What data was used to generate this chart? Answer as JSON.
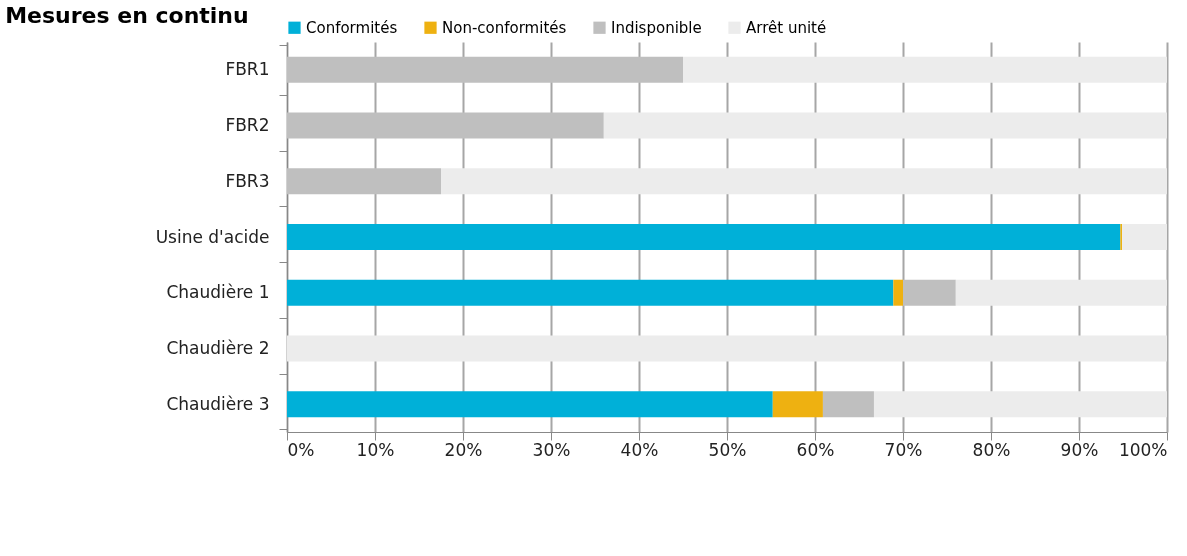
{
  "chart_data": {
    "type": "bar",
    "orientation": "horizontal",
    "stacked": true,
    "title": "Mesures en continu",
    "categories": [
      "FBR1",
      "FBR2",
      "FBR3",
      "Usine d'acide",
      "Chaudière 1",
      "Chaudière 2",
      "Chaudière 3"
    ],
    "series": [
      {
        "name": "Conformités",
        "color": "#00b0d8",
        "values": [
          0,
          0,
          0,
          94.7,
          68.9,
          0,
          55.2
        ]
      },
      {
        "name": "Non-conformités",
        "color": "#eeb111",
        "values": [
          0,
          0,
          0,
          0.2,
          1.1,
          0,
          5.7
        ]
      },
      {
        "name": "Indisponible",
        "color": "#bfbfbf",
        "values": [
          45,
          36,
          17.5,
          0,
          6.0,
          0,
          5.8
        ]
      },
      {
        "name": "Arrêt unité",
        "color": "#ececec",
        "values": [
          55,
          64,
          82.5,
          5.1,
          24.0,
          100,
          33.3
        ]
      }
    ],
    "xlim": [
      0,
      100
    ],
    "xticks": [
      {
        "value": 0,
        "label": "0%"
      },
      {
        "value": 10,
        "label": "10%"
      },
      {
        "value": 20,
        "label": "20%"
      },
      {
        "value": 30,
        "label": "30%"
      },
      {
        "value": 40,
        "label": "40%"
      },
      {
        "value": 50,
        "label": "50%"
      },
      {
        "value": 60,
        "label": "60%"
      },
      {
        "value": 70,
        "label": "70%"
      },
      {
        "value": 80,
        "label": "80%"
      },
      {
        "value": 90,
        "label": "90%"
      },
      {
        "value": 100,
        "label": "100%"
      }
    ],
    "grid": "x",
    "legend": "top"
  }
}
